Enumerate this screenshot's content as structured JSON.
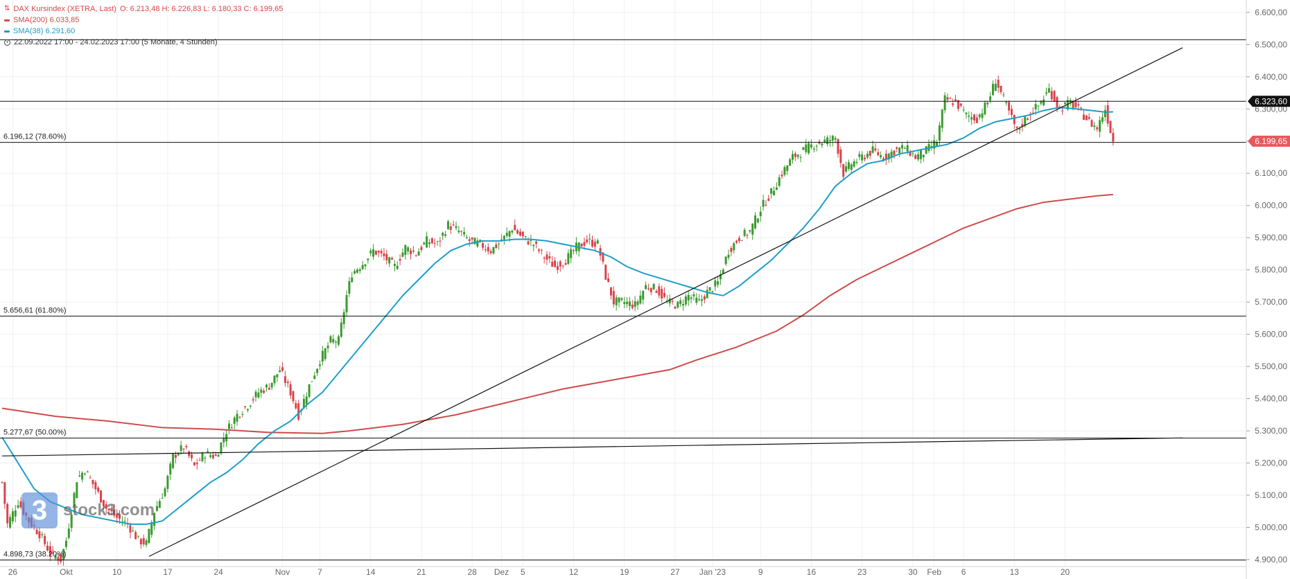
{
  "legend": {
    "main": "DAX Kursindex (XETRA, Last)",
    "ohlc": "O: 6.213,48  H: 6.226,83  L: 6.180,33  C: 6.199,65",
    "sma200": "SMA(200)  6.033,85",
    "sma38": "SMA(38)  6.291,60",
    "period": "22.09.2022 17:00 - 24.02.2023 17:00   (5 Monate, 4 Stunden)"
  },
  "watermark": {
    "digit": "3",
    "text": "stock3.com"
  },
  "colors": {
    "up": "#3a9a2f",
    "down": "#d9434b",
    "sma38": "#1c9ec8",
    "sma200": "#cf4a4a",
    "line": "#111111",
    "grid": "#eef0f3",
    "axis": "#666666"
  },
  "chart_data": {
    "type": "candlestick",
    "title": "DAX Kursindex (XETRA, Last)",
    "ylim": [
      4860,
      6600
    ],
    "y_ticks": [
      {
        "v": 4900,
        "label": "4.900,00"
      },
      {
        "v": 5000,
        "label": "5.000,00"
      },
      {
        "v": 5100,
        "label": "5.100,00"
      },
      {
        "v": 5200,
        "label": "5.200,00"
      },
      {
        "v": 5300,
        "label": "5.300,00"
      },
      {
        "v": 5400,
        "label": "5.400,00"
      },
      {
        "v": 5500,
        "label": "5.500,00"
      },
      {
        "v": 5600,
        "label": "5.600,00"
      },
      {
        "v": 5700,
        "label": "5.700,00"
      },
      {
        "v": 5800,
        "label": "5.800,00"
      },
      {
        "v": 5900,
        "label": "5.900,00"
      },
      {
        "v": 6000,
        "label": "6.000,00"
      },
      {
        "v": 6100,
        "label": "6.100,00"
      },
      {
        "v": 6200,
        "label": "6.200,00"
      },
      {
        "v": 6300,
        "label": "6.300,00"
      },
      {
        "v": 6400,
        "label": "6.400,00"
      },
      {
        "v": 6500,
        "label": "6.500,00"
      },
      {
        "v": 6600,
        "label": "6.600,00"
      }
    ],
    "x_ticks": [
      {
        "label": "26",
        "i": 4
      },
      {
        "label": "Okt",
        "i": 24
      },
      {
        "label": "10",
        "i": 43
      },
      {
        "label": "17",
        "i": 62
      },
      {
        "label": "24",
        "i": 81
      },
      {
        "label": "Nov",
        "i": 105
      },
      {
        "label": "7",
        "i": 119
      },
      {
        "label": "14",
        "i": 138
      },
      {
        "label": "21",
        "i": 157
      },
      {
        "label": "28",
        "i": 176
      },
      {
        "label": "Dez",
        "i": 187
      },
      {
        "label": "5",
        "i": 195
      },
      {
        "label": "12",
        "i": 214
      },
      {
        "label": "19",
        "i": 233
      },
      {
        "label": "27",
        "i": 252
      },
      {
        "label": "Jan '23",
        "i": 266
      },
      {
        "label": "9",
        "i": 284
      },
      {
        "label": "16",
        "i": 303
      },
      {
        "label": "23",
        "i": 322
      },
      {
        "label": "30",
        "i": 341
      },
      {
        "label": "Feb",
        "i": 349
      },
      {
        "label": "6",
        "i": 360
      },
      {
        "label": "13",
        "i": 379
      },
      {
        "label": "20",
        "i": 398
      }
    ],
    "x_count": 442,
    "fib_levels": [
      {
        "value": 6196.12,
        "label": "6.196,12 (78.60%)"
      },
      {
        "value": 5656.61,
        "label": "5.656,61 (61.80%)"
      },
      {
        "value": 5277.67,
        "label": "5.277,67 (50.00%)"
      },
      {
        "value": 4898.73,
        "label": "4.898,73 (38.20%)"
      }
    ],
    "horizontal_lines": [
      6515,
      6323.6
    ],
    "price_labels": [
      {
        "value": 6323.6,
        "label": "6.323,60",
        "color": "#111111"
      },
      {
        "value": 6199.65,
        "label": "6.199,65",
        "color": "#e8575e"
      }
    ],
    "trendlines": [
      {
        "from": [
          55,
          4910
        ],
        "to": [
          442,
          6490
        ]
      },
      {
        "from": [
          0,
          5222
        ],
        "to": [
          442,
          5278
        ]
      }
    ],
    "close_anchors": [
      [
        0,
        5140
      ],
      [
        2,
        5010
      ],
      [
        6,
        5080
      ],
      [
        10,
        5020
      ],
      [
        14,
        4980
      ],
      [
        18,
        4920
      ],
      [
        22,
        4900
      ],
      [
        24,
        4960
      ],
      [
        28,
        5150
      ],
      [
        31,
        5180
      ],
      [
        35,
        5120
      ],
      [
        39,
        5060
      ],
      [
        43,
        5030
      ],
      [
        47,
        5010
      ],
      [
        51,
        4960
      ],
      [
        54,
        4950
      ],
      [
        57,
        5050
      ],
      [
        61,
        5120
      ],
      [
        64,
        5220
      ],
      [
        68,
        5250
      ],
      [
        72,
        5190
      ],
      [
        76,
        5230
      ],
      [
        80,
        5220
      ],
      [
        84,
        5300
      ],
      [
        88,
        5350
      ],
      [
        92,
        5380
      ],
      [
        96,
        5420
      ],
      [
        100,
        5440
      ],
      [
        104,
        5490
      ],
      [
        108,
        5420
      ],
      [
        111,
        5350
      ],
      [
        115,
        5440
      ],
      [
        119,
        5520
      ],
      [
        123,
        5580
      ],
      [
        126,
        5580
      ],
      [
        129,
        5720
      ],
      [
        131,
        5790
      ],
      [
        135,
        5820
      ],
      [
        139,
        5860
      ],
      [
        143,
        5840
      ],
      [
        147,
        5810
      ],
      [
        151,
        5870
      ],
      [
        155,
        5850
      ],
      [
        159,
        5890
      ],
      [
        163,
        5880
      ],
      [
        167,
        5940
      ],
      [
        171,
        5920
      ],
      [
        175,
        5890
      ],
      [
        179,
        5880
      ],
      [
        183,
        5860
      ],
      [
        187,
        5890
      ],
      [
        191,
        5930
      ],
      [
        195,
        5900
      ],
      [
        199,
        5880
      ],
      [
        203,
        5840
      ],
      [
        207,
        5810
      ],
      [
        211,
        5830
      ],
      [
        215,
        5870
      ],
      [
        219,
        5890
      ],
      [
        223,
        5880
      ],
      [
        226,
        5780
      ],
      [
        229,
        5700
      ],
      [
        233,
        5700
      ],
      [
        237,
        5690
      ],
      [
        241,
        5750
      ],
      [
        245,
        5740
      ],
      [
        249,
        5700
      ],
      [
        253,
        5690
      ],
      [
        257,
        5720
      ],
      [
        261,
        5700
      ],
      [
        264,
        5730
      ],
      [
        268,
        5760
      ],
      [
        272,
        5860
      ],
      [
        276,
        5900
      ],
      [
        280,
        5920
      ],
      [
        284,
        5990
      ],
      [
        288,
        6040
      ],
      [
        292,
        6100
      ],
      [
        296,
        6150
      ],
      [
        300,
        6170
      ],
      [
        304,
        6190
      ],
      [
        308,
        6200
      ],
      [
        312,
        6210
      ],
      [
        315,
        6100
      ],
      [
        318,
        6130
      ],
      [
        322,
        6150
      ],
      [
        326,
        6170
      ],
      [
        330,
        6150
      ],
      [
        334,
        6170
      ],
      [
        338,
        6180
      ],
      [
        342,
        6150
      ],
      [
        346,
        6170
      ],
      [
        350,
        6200
      ],
      [
        353,
        6330
      ],
      [
        357,
        6320
      ],
      [
        361,
        6280
      ],
      [
        365,
        6270
      ],
      [
        369,
        6320
      ],
      [
        372,
        6390
      ],
      [
        376,
        6310
      ],
      [
        380,
        6230
      ],
      [
        384,
        6280
      ],
      [
        388,
        6310
      ],
      [
        392,
        6360
      ],
      [
        396,
        6300
      ],
      [
        400,
        6320
      ],
      [
        404,
        6290
      ],
      [
        407,
        6260
      ],
      [
        410,
        6240
      ],
      [
        413,
        6300
      ],
      [
        416,
        6200
      ]
    ],
    "sma38_anchors": [
      [
        0,
        5280
      ],
      [
        6,
        5200
      ],
      [
        12,
        5120
      ],
      [
        18,
        5080
      ],
      [
        24,
        5060
      ],
      [
        30,
        5040
      ],
      [
        36,
        5030
      ],
      [
        42,
        5020
      ],
      [
        48,
        5010
      ],
      [
        54,
        5010
      ],
      [
        60,
        5020
      ],
      [
        66,
        5060
      ],
      [
        72,
        5100
      ],
      [
        78,
        5140
      ],
      [
        84,
        5170
      ],
      [
        90,
        5210
      ],
      [
        96,
        5260
      ],
      [
        102,
        5300
      ],
      [
        108,
        5330
      ],
      [
        114,
        5380
      ],
      [
        120,
        5420
      ],
      [
        126,
        5480
      ],
      [
        132,
        5540
      ],
      [
        138,
        5600
      ],
      [
        144,
        5660
      ],
      [
        150,
        5720
      ],
      [
        156,
        5770
      ],
      [
        162,
        5820
      ],
      [
        168,
        5860
      ],
      [
        174,
        5880
      ],
      [
        180,
        5890
      ],
      [
        186,
        5890
      ],
      [
        192,
        5895
      ],
      [
        198,
        5895
      ],
      [
        204,
        5890
      ],
      [
        210,
        5880
      ],
      [
        216,
        5870
      ],
      [
        222,
        5860
      ],
      [
        228,
        5840
      ],
      [
        234,
        5810
      ],
      [
        240,
        5790
      ],
      [
        246,
        5775
      ],
      [
        252,
        5760
      ],
      [
        258,
        5745
      ],
      [
        264,
        5730
      ],
      [
        270,
        5720
      ],
      [
        276,
        5750
      ],
      [
        282,
        5790
      ],
      [
        288,
        5830
      ],
      [
        294,
        5880
      ],
      [
        300,
        5930
      ],
      [
        306,
        5990
      ],
      [
        312,
        6060
      ],
      [
        318,
        6100
      ],
      [
        324,
        6130
      ],
      [
        330,
        6140
      ],
      [
        336,
        6160
      ],
      [
        342,
        6170
      ],
      [
        348,
        6180
      ],
      [
        354,
        6190
      ],
      [
        360,
        6210
      ],
      [
        366,
        6240
      ],
      [
        372,
        6260
      ],
      [
        378,
        6270
      ],
      [
        384,
        6280
      ],
      [
        390,
        6295
      ],
      [
        396,
        6305
      ],
      [
        402,
        6300
      ],
      [
        408,
        6295
      ],
      [
        413,
        6290
      ],
      [
        416,
        6291
      ]
    ],
    "sma200_anchors": [
      [
        0,
        5370
      ],
      [
        20,
        5345
      ],
      [
        40,
        5330
      ],
      [
        60,
        5310
      ],
      [
        80,
        5305
      ],
      [
        100,
        5295
      ],
      [
        120,
        5292
      ],
      [
        130,
        5300
      ],
      [
        150,
        5320
      ],
      [
        170,
        5350
      ],
      [
        190,
        5390
      ],
      [
        210,
        5430
      ],
      [
        230,
        5460
      ],
      [
        250,
        5490
      ],
      [
        260,
        5520
      ],
      [
        275,
        5560
      ],
      [
        290,
        5610
      ],
      [
        300,
        5660
      ],
      [
        310,
        5720
      ],
      [
        320,
        5770
      ],
      [
        330,
        5810
      ],
      [
        340,
        5850
      ],
      [
        350,
        5890
      ],
      [
        360,
        5930
      ],
      [
        370,
        5960
      ],
      [
        380,
        5990
      ],
      [
        390,
        6010
      ],
      [
        400,
        6020
      ],
      [
        410,
        6030
      ],
      [
        416,
        6034
      ]
    ]
  }
}
